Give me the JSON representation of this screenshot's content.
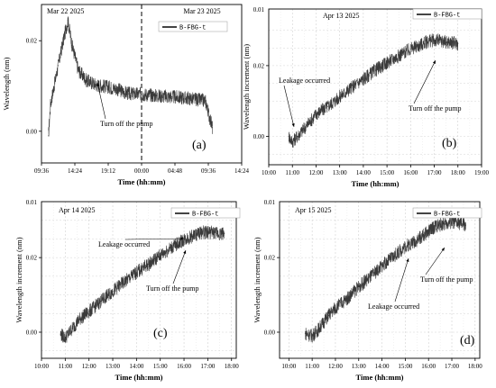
{
  "chart_data": [
    {
      "type": "line",
      "panel_label": "(a)",
      "xlabel": "Time (hh:mm)",
      "ylabel": "Wavelength (nm)",
      "x_ticks": [
        "09:36",
        "14:24",
        "19:12",
        "00:00",
        "04:48",
        "09:36",
        "14:24"
      ],
      "y_ticks": [
        "0.00",
        "0.02"
      ],
      "ylim": [
        -0.007,
        0.028
      ],
      "grid": false,
      "legend": "B-FBG-t",
      "legend_position": "top-right",
      "dates": [
        "Mar 22 2025",
        "Mar 23 2025"
      ],
      "divider_at": "00:00",
      "annotations": [
        {
          "text": "Turn off the pump",
          "x": 3.8,
          "y": 0.0127
        }
      ],
      "series": [
        {
          "name": "B-FBG-t",
          "x_unit": "hours from 09:36",
          "x": [
            1.0,
            1.3,
            2.4,
            3.0,
            3.8,
            4.4,
            5.3,
            6.5,
            8.0,
            9.6,
            10.7,
            12.5,
            14.4,
            16.3,
            18.8,
            21.1,
            23.6,
            24.0,
            24.6
          ],
          "y": [
            -0.001,
            0.006,
            0.0145,
            0.019,
            0.0245,
            0.019,
            0.0135,
            0.0112,
            0.0102,
            0.0098,
            0.0094,
            0.0083,
            0.0082,
            0.0079,
            0.0076,
            0.0073,
            0.0067,
            0.0042,
            0.0008
          ]
        }
      ]
    },
    {
      "type": "line",
      "panel_label": "(b)",
      "xlabel": "Time (hh:mm)",
      "ylabel": "Wavelength  increment (nm)",
      "x_ticks": [
        "10:00",
        "11:00",
        "12:00",
        "13:00",
        "14:00",
        "15:00",
        "16:00",
        "17:00",
        "18:00",
        "19:00"
      ],
      "y_ticks": [
        "0.00",
        "0.02"
      ],
      "y_top_tick": "0.01",
      "ylim": [
        -0.008,
        0.036
      ],
      "grid": true,
      "legend": "B-FBG-t",
      "legend_position": "top-right",
      "dates": [
        "Apr 13 2025"
      ],
      "annotations": [
        {
          "text": "Leakage occurred",
          "x": 10.95,
          "y": 0.0015
        },
        {
          "text": "Turn off the pump",
          "x": 16.9,
          "y": 0.0265
        }
      ],
      "series": [
        {
          "name": "B-FBG-t",
          "x_unit": "hour of day",
          "x": [
            10.85,
            11.0,
            11.2,
            11.6,
            12.0,
            12.5,
            13.0,
            13.5,
            14.0,
            14.5,
            15.0,
            15.5,
            16.0,
            16.4,
            16.8,
            17.2,
            17.6,
            18.0
          ],
          "y": [
            0.0,
            -0.0015,
            0.0,
            0.003,
            0.0063,
            0.0085,
            0.0112,
            0.0138,
            0.0162,
            0.0187,
            0.0208,
            0.0228,
            0.0247,
            0.0258,
            0.0271,
            0.0271,
            0.0266,
            0.0262
          ]
        }
      ]
    },
    {
      "type": "line",
      "panel_label": "(c)",
      "xlabel": "Time (hh:mm)",
      "ylabel": "Wavelength  increment (nm)",
      "x_ticks": [
        "10:00",
        "11:00",
        "12:00",
        "13:00",
        "14:00",
        "15:00",
        "16:00",
        "17:00",
        "18:00"
      ],
      "y_ticks": [
        "0.00",
        "0.02"
      ],
      "y_top_tick": "0.01",
      "ylim": [
        -0.007,
        0.035
      ],
      "grid": true,
      "legend": "B-FBG-t",
      "legend_position": "top-right",
      "dates": [
        "Apr 14 2025"
      ],
      "annotations": [
        {
          "text": "Leakage occurred",
          "x": 16.05,
          "y": 0.0278
        },
        {
          "text": "Turn off the pump",
          "x": 16.1,
          "y": 0.0255
        }
      ],
      "series": [
        {
          "name": "B-FBG-t",
          "x_unit": "hour of day",
          "x": [
            10.8,
            11.0,
            11.3,
            11.6,
            12.0,
            12.5,
            13.0,
            13.5,
            14.0,
            14.5,
            15.0,
            15.5,
            16.0,
            16.3,
            16.7,
            17.0,
            17.4,
            17.7
          ],
          "y": [
            -0.0005,
            -0.0015,
            0.001,
            0.0035,
            0.0055,
            0.0083,
            0.011,
            0.0135,
            0.016,
            0.0182,
            0.0206,
            0.0228,
            0.0248,
            0.0256,
            0.0267,
            0.0268,
            0.0265,
            0.0265
          ]
        }
      ]
    },
    {
      "type": "line",
      "panel_label": "(d)",
      "xlabel": "Time (hh:mm)",
      "ylabel": "Wavelength  increment (nm)",
      "x_ticks": [
        "10:00",
        "11:00",
        "12:00",
        "13:00",
        "14:00",
        "15:00",
        "16:00",
        "17:00",
        "18:00"
      ],
      "y_ticks": [
        "0.00",
        "0.02"
      ],
      "y_top_tick": "0.01",
      "ylim": [
        -0.007,
        0.035
      ],
      "grid": true,
      "legend": "B-FBG-t",
      "legend_position": "top-right",
      "dates": [
        "Apr 15 2025"
      ],
      "annotations": [
        {
          "text": "Leakage occurred",
          "x": 14.75,
          "y": 0.0205
        },
        {
          "text": "Turn off the pump",
          "x": 16.75,
          "y": 0.027
        }
      ],
      "series": [
        {
          "name": "B-FBG-t",
          "x_unit": "hour of day",
          "x": [
            10.7,
            11.0,
            11.3,
            11.7,
            12.0,
            12.5,
            13.0,
            13.5,
            14.0,
            14.5,
            15.0,
            15.5,
            16.0,
            16.3,
            16.7,
            17.0,
            17.3,
            17.6
          ],
          "y": [
            -0.0003,
            -0.001,
            0.001,
            0.0045,
            0.0065,
            0.009,
            0.0122,
            0.0148,
            0.0178,
            0.0203,
            0.023,
            0.0247,
            0.027,
            0.0285,
            0.029,
            0.0296,
            0.0292,
            0.0287
          ]
        }
      ]
    }
  ]
}
